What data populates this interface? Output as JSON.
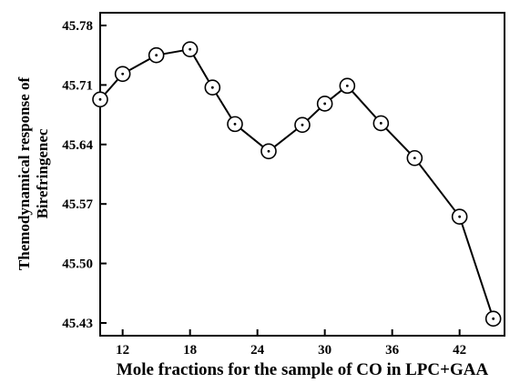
{
  "chart_data": {
    "type": "line",
    "xlabel": "Mole fractions for the sample of CO in LPC+GAA",
    "ylabel": [
      "Themodynamical response of",
      "Birefringenec"
    ],
    "xlim": [
      10,
      46
    ],
    "ylim": [
      45.415,
      45.795
    ],
    "x_ticks": [
      12,
      18,
      24,
      30,
      36,
      42
    ],
    "y_ticks": [
      45.43,
      45.5,
      45.57,
      45.64,
      45.71,
      45.78
    ],
    "y_tick_labels": [
      "45.43",
      "45.50",
      "45.57",
      "45.64",
      "45.71",
      "45.78"
    ],
    "grid": false,
    "marker": "circle-with-dot",
    "series": [
      {
        "x": [
          10,
          12,
          15,
          18,
          20,
          22,
          25,
          28,
          30,
          32,
          35,
          38,
          42,
          45
        ],
        "y": [
          45.693,
          45.723,
          45.745,
          45.752,
          45.707,
          45.664,
          45.632,
          45.663,
          45.688,
          45.709,
          45.665,
          45.624,
          45.555,
          45.435
        ]
      }
    ]
  }
}
